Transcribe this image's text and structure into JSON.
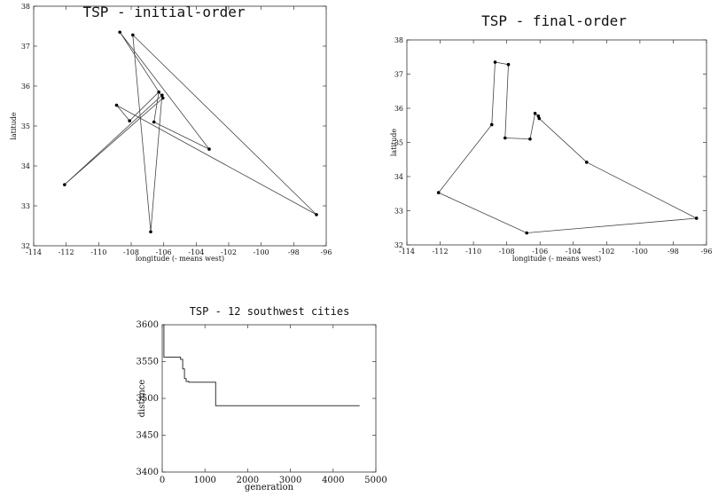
{
  "chart_data": [
    {
      "type": "line",
      "title": "TSP  -  initial-order",
      "xlabel": "longitude (- means west)",
      "ylabel": "latitude",
      "xlim": [
        -114,
        -96
      ],
      "ylim": [
        32,
        38
      ],
      "xticks": [
        -114,
        -112,
        -110,
        -108,
        -106,
        -104,
        -102,
        -100,
        -98,
        -96
      ],
      "yticks": [
        32,
        33,
        34,
        35,
        36,
        37,
        38
      ],
      "closed": true,
      "route": [
        [
          -108.9,
          35.52
        ],
        [
          -108.1,
          35.13
        ],
        [
          -106.3,
          35.85
        ],
        [
          -106.6,
          35.1
        ],
        [
          -103.2,
          34.42
        ],
        [
          -108.7,
          37.35
        ],
        [
          -106.05,
          35.7
        ],
        [
          -112.1,
          33.53
        ],
        [
          -106.1,
          35.77
        ],
        [
          -106.8,
          32.35
        ],
        [
          -107.9,
          37.28
        ],
        [
          -96.6,
          32.78
        ]
      ]
    },
    {
      "type": "line",
      "title": "TSP  -  final-order",
      "xlabel": "longitude (- means west)",
      "ylabel": "latitude",
      "xlim": [
        -114,
        -96
      ],
      "ylim": [
        32,
        38
      ],
      "xticks": [
        -114,
        -112,
        -110,
        -108,
        -106,
        -104,
        -102,
        -100,
        -98,
        -96
      ],
      "yticks": [
        32,
        33,
        34,
        35,
        36,
        37,
        38
      ],
      "closed": true,
      "route": [
        [
          -112.1,
          33.53
        ],
        [
          -108.9,
          35.52
        ],
        [
          -108.7,
          37.35
        ],
        [
          -107.9,
          37.28
        ],
        [
          -108.1,
          35.13
        ],
        [
          -106.6,
          35.1
        ],
        [
          -106.3,
          35.85
        ],
        [
          -106.1,
          35.77
        ],
        [
          -106.05,
          35.7
        ],
        [
          -103.2,
          34.42
        ],
        [
          -96.6,
          32.78
        ],
        [
          -106.8,
          32.35
        ]
      ]
    },
    {
      "type": "line",
      "title": "TSP  -  12 southwest cities",
      "xlabel": "generation",
      "ylabel": "distance",
      "xlim": [
        0,
        5000
      ],
      "ylim": [
        3400,
        3600
      ],
      "xticks": [
        0,
        1000,
        2000,
        3000,
        4000,
        5000
      ],
      "yticks": [
        3400,
        3450,
        3500,
        3550,
        3600
      ],
      "series": [
        {
          "x": [
            0,
            40,
            40,
            430,
            430,
            480,
            480,
            520,
            520,
            560,
            560,
            620,
            620,
            1250,
            1250,
            4620
          ],
          "y": [
            3600,
            3600,
            3556,
            3556,
            3553,
            3553,
            3540,
            3540,
            3527,
            3527,
            3523,
            3523,
            3522,
            3522,
            3490,
            3490
          ]
        }
      ]
    }
  ]
}
